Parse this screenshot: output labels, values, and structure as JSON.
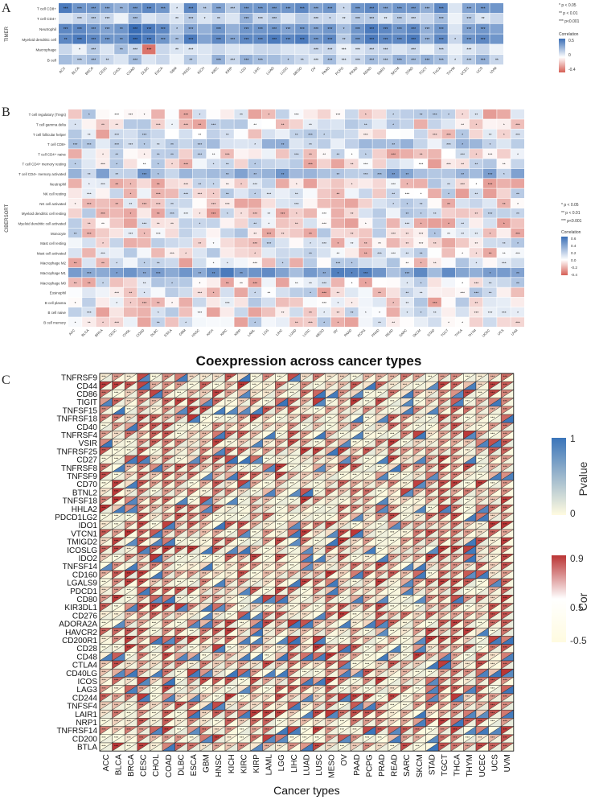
{
  "panel_letters": [
    "A",
    "B",
    "C"
  ],
  "significance_legend": [
    "* p < 0.05",
    "** p < 0.01",
    "*** p<0.001"
  ],
  "correlation_label": "Correlation",
  "chart_data": [
    {
      "type": "heatmap",
      "panel": "A",
      "ylabel": "TIMER",
      "rows": [
        "T cell CD8+",
        "T cell CD4+",
        "Neutrophil",
        "Myeloid dendritic cell",
        "Macrophage",
        "B cell"
      ],
      "columns": [
        "ACC",
        "BLCA",
        "BRCA",
        "CESC",
        "CHOL",
        "COAD",
        "DLBC",
        "ESCA",
        "GBM",
        "HNSC",
        "KICH",
        "KIRC",
        "KIRP",
        "LGG",
        "LIHC",
        "LUAD",
        "LUSC",
        "MESO",
        "OV",
        "PAAD",
        "PCPG",
        "PRAD",
        "READ",
        "SARC",
        "SKCM",
        "STAD",
        "TGCT",
        "THCA",
        "THYM",
        "UCEC",
        "UCS",
        "UVM"
      ],
      "values": [
        [
          0.5,
          0.4,
          0.4,
          0.35,
          0.3,
          0.4,
          0.45,
          0.4,
          0.1,
          0.45,
          0.2,
          0.35,
          0.2,
          0.4,
          0.4,
          0.4,
          0.4,
          0.45,
          0.35,
          0.4,
          0.15,
          0.4,
          0.45,
          0.35,
          0.4,
          0.4,
          0.3,
          0.45,
          0.1,
          0.35,
          0.4,
          0.4
        ],
        [
          0.1,
          0.15,
          0.2,
          0.15,
          0.05,
          0.25,
          0.1,
          0.15,
          0.1,
          0.2,
          0.1,
          0.15,
          0.1,
          0.3,
          0.15,
          0.2,
          0.1,
          0.2,
          0.15,
          0.15,
          0.1,
          0.2,
          0.2,
          0.1,
          0.2,
          0.15,
          0.15,
          0.25,
          0.05,
          0.2,
          0.1,
          0.15
        ],
        [
          0.45,
          0.45,
          0.4,
          0.35,
          0.4,
          0.55,
          0.5,
          0.45,
          0.2,
          0.35,
          0.3,
          0.4,
          0.3,
          0.4,
          0.4,
          0.4,
          0.35,
          0.4,
          0.35,
          0.4,
          0.25,
          0.4,
          0.5,
          0.45,
          0.4,
          0.45,
          0.3,
          0.4,
          0.1,
          0.35,
          0.4,
          0.35
        ],
        [
          0.45,
          0.5,
          0.45,
          0.4,
          0.4,
          0.55,
          0.5,
          0.4,
          0.25,
          0.5,
          0.35,
          0.45,
          0.35,
          0.45,
          0.45,
          0.5,
          0.45,
          0.5,
          0.4,
          0.45,
          0.2,
          0.4,
          0.5,
          0.45,
          0.45,
          0.5,
          0.3,
          0.45,
          0.15,
          0.4,
          0.45,
          0.4
        ],
        [
          0.15,
          0.05,
          0.2,
          0.1,
          0.25,
          0.15,
          -0.35,
          0.15,
          0.1,
          0.1,
          0.1,
          0.15,
          0.1,
          0.1,
          0.15,
          0.15,
          0.1,
          0.1,
          0.15,
          0.15,
          0.05,
          0.1,
          0.15,
          0.15,
          0.1,
          0.15,
          0.05,
          0.15,
          0.05,
          0.1,
          0.15,
          0.05
        ],
        [
          0.25,
          0.2,
          0.25,
          0.15,
          0.1,
          0.25,
          0.1,
          0.15,
          0.05,
          0.2,
          0.1,
          0.3,
          0.15,
          0.3,
          0.25,
          0.25,
          0.2,
          0.15,
          0.1,
          0.25,
          0.1,
          0.15,
          0.25,
          0.2,
          0.3,
          0.25,
          0.3,
          0.25,
          0.1,
          0.2,
          0.3,
          0.15
        ]
      ],
      "labels": [
        [
          "***",
          "***",
          "***",
          "***",
          "**",
          "***",
          "***",
          "***",
          "*",
          "***",
          "**",
          "***",
          "***",
          "***",
          "***",
          "***",
          "***",
          "***",
          "***",
          "***",
          "*",
          "***",
          "***",
          "***",
          "***",
          "***",
          "***",
          "***",
          "",
          "***",
          "***",
          ""
        ],
        [
          "",
          "***",
          "***",
          "***",
          "",
          "***",
          "",
          "",
          "**",
          "***",
          "*",
          "**",
          "",
          "***",
          "***",
          "***",
          "",
          "",
          "***",
          "*",
          "**",
          "***",
          "***",
          "**",
          "***",
          "***",
          "",
          "***",
          "",
          "***",
          "**",
          ""
        ],
        [
          "***",
          "***",
          "***",
          "***",
          "**",
          "***",
          "***",
          "***",
          "*",
          "***",
          "",
          "***",
          "",
          "***",
          "***",
          "***",
          "***",
          "***",
          "***",
          "***",
          "*",
          "***",
          "***",
          "***",
          "***",
          "***",
          "***",
          "***",
          "",
          "***",
          "***",
          ""
        ],
        [
          "**",
          "***",
          "***",
          "***",
          "**",
          "***",
          "***",
          "***",
          "**",
          "***",
          "",
          "***",
          "***",
          "***",
          "***",
          "***",
          "***",
          "***",
          "***",
          "***",
          "**",
          "***",
          "***",
          "***",
          "***",
          "***",
          "***",
          "***",
          "*",
          "***",
          "***",
          ""
        ],
        [
          "",
          "*",
          "***",
          "",
          "**",
          "***",
          "***",
          "",
          "**",
          "***",
          "",
          "",
          "",
          "",
          "",
          "",
          "",
          "",
          "***",
          "***",
          "***",
          "***",
          "***",
          "***",
          "",
          "***",
          "",
          "***",
          "",
          "***",
          "",
          ""
        ],
        [
          "",
          "***",
          "***",
          "**",
          "",
          "***",
          "",
          "",
          "",
          "**",
          "",
          "***",
          "***",
          "***",
          "***",
          "",
          "*",
          "**",
          "***",
          "***",
          "***",
          "***",
          "***",
          "***",
          "***",
          "***",
          "***",
          "***",
          "*",
          "***",
          "***",
          "**"
        ]
      ],
      "colorbar_ticks": [
        "0.5",
        "0",
        "-0.4"
      ]
    },
    {
      "type": "heatmap",
      "panel": "B",
      "ylabel": "CIBERSORT",
      "rows": [
        "T cell regulatory (Tregs)",
        "T cell gamma delta",
        "T cell follicular helper",
        "T cell CD8+",
        "T cell CD4+ naive",
        "T cell CD4+ memory resting",
        "T cell CD4+ memory activated",
        "Neutrophil",
        "NK cell resting",
        "NK cell activated",
        "Myeloid dendritic cell resting",
        "Myeloid dendritic cell activated",
        "Monocyte",
        "Mast cell resting",
        "Mast cell activated",
        "Macrophage M2",
        "Macrophage M1",
        "Macrophage M0",
        "Eosinophil",
        "B cell plasma",
        "B cell naive",
        "B cell memory"
      ],
      "columns": [
        "ACC",
        "BLCA",
        "BRCA",
        "CESC",
        "CHOL",
        "COAD",
        "DLBC",
        "ESCA",
        "GBM",
        "HNSC",
        "KICH",
        "KIRC",
        "KIRP",
        "LAML",
        "LGG",
        "LIHC",
        "LUAD",
        "LUSC",
        "MESO",
        "OV",
        "PAAD",
        "PCPG",
        "PRAD",
        "READ",
        "SARC",
        "SKCM",
        "STAD",
        "TGCT",
        "THCA",
        "THYM",
        "UCEC",
        "UCS",
        "UVM"
      ],
      "colorbar_ticks": [
        "0.6",
        "0.4",
        "0.2",
        "0.0",
        "-0.2",
        "-0.4"
      ]
    },
    {
      "type": "heatmap",
      "panel": "C",
      "title": "Coexpression across cancer types",
      "xlabel": "Cancer types",
      "rows": [
        "TNFRSF9",
        "CD44",
        "CD86",
        "TIGIT",
        "TNFSF15",
        "TNFRSF18",
        "CD40",
        "TNFRSF4",
        "VSIR",
        "TNFRSF25",
        "CD27",
        "TNFRSF8",
        "TNFSF9",
        "CD70",
        "BTNL2",
        "TNFSF18",
        "HHLA2",
        "PDCD1LG2",
        "IDO1",
        "VTCN1",
        "TMIGD2",
        "ICOSLG",
        "IDO2",
        "TNFSF14",
        "CD160",
        "LGALS9",
        "PDCD1",
        "CD80",
        "KIR3DL1",
        "CD276",
        "ADORA2A",
        "HAVCR2",
        "CD200R1",
        "CD28",
        "CD48",
        "CTLA4",
        "CD40LG",
        "ICOS",
        "LAG3",
        "CD244",
        "TNFSF4",
        "LAIR1",
        "NRP1",
        "TNFRSF14",
        "CD200",
        "BTLA"
      ],
      "columns": [
        "ACC",
        "BLCA",
        "BRCA",
        "CESC",
        "CHOL",
        "COAD",
        "DLBC",
        "ESCA",
        "GBM",
        "HNSC",
        "KICH",
        "KIRC",
        "KIRP",
        "LAML",
        "LGG",
        "LIHC",
        "LUAD",
        "LUSC",
        "MESO",
        "OV",
        "PAAD",
        "PCPG",
        "PRAD",
        "READ",
        "SARC",
        "SKCM",
        "STAD",
        "TGCT",
        "THCA",
        "THYM",
        "UCEC",
        "UCS",
        "UVM"
      ],
      "legend_pvalue": {
        "title": "Pvalue",
        "ticks": [
          "1",
          "0"
        ]
      },
      "legend_cor": {
        "title": "Cor",
        "ticks": [
          "0.9",
          "0.5",
          "-0.5"
        ]
      }
    }
  ]
}
